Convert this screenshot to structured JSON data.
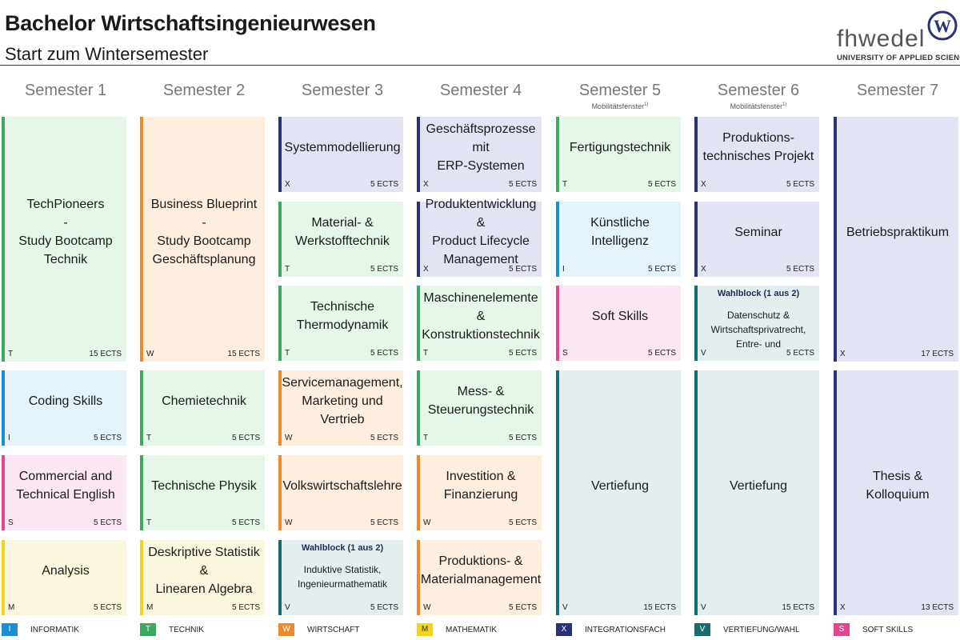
{
  "header": {
    "title": "Bachelor Wirtschaftsingenieurwesen",
    "subtitle": "Start zum Wintersemester"
  },
  "logo": {
    "wordmark": "fhwedel",
    "tagline": "UNIVERSITY OF APPLIED SCIENCES",
    "seal_letter": "W"
  },
  "colors": {
    "I": {
      "bar": "#1a8fd1",
      "bg": "#e5f3fb"
    },
    "T": {
      "bar": "#3da862",
      "bg": "#e6f6e9"
    },
    "W": {
      "bar": "#ee8a2a",
      "bg": "#fdeee0"
    },
    "M": {
      "bar": "#f2d41a",
      "bg": "#fbf7de"
    },
    "X": {
      "bar": "#2a3272",
      "bg": "#e2e3f3"
    },
    "V": {
      "bar": "#1a6b6b",
      "bg": "#e4eeee"
    },
    "S": {
      "bar": "#e0458f",
      "bg": "#fbe6f4"
    }
  },
  "semesters": [
    {
      "label": "Semester 1",
      "note": ""
    },
    {
      "label": "Semester 2",
      "note": ""
    },
    {
      "label": "Semester 3",
      "note": ""
    },
    {
      "label": "Semester 4",
      "note": ""
    },
    {
      "label": "Semester 5",
      "note": "Mobilitätsfenster",
      "note_sup": "1)"
    },
    {
      "label": "Semester 6",
      "note": "Mobilitätsfenster",
      "note_sup": "1)"
    },
    {
      "label": "Semester 7",
      "note": ""
    }
  ],
  "modules": [
    {
      "sem": 0,
      "row": 0,
      "span": 3,
      "name": "TechPioneers\n-\nStudy Bootcamp\nTechnik",
      "type": "T",
      "ects": "15 ECTS"
    },
    {
      "sem": 0,
      "row": 3,
      "span": 1,
      "name": "Coding Skills",
      "type": "I",
      "ects": "5 ECTS"
    },
    {
      "sem": 0,
      "row": 4,
      "span": 1,
      "name": "Commercial and\nTechnical English",
      "type": "S",
      "ects": "5 ECTS"
    },
    {
      "sem": 0,
      "row": 5,
      "span": 1,
      "name": "Analysis",
      "type": "M",
      "ects": "5 ECTS"
    },
    {
      "sem": 1,
      "row": 0,
      "span": 3,
      "name": "Business Blueprint\n-\nStudy Bootcamp\nGeschäftsplanung",
      "type": "W",
      "ects": "15 ECTS"
    },
    {
      "sem": 1,
      "row": 3,
      "span": 1,
      "name": "Chemietechnik",
      "type": "T",
      "ects": "5 ECTS"
    },
    {
      "sem": 1,
      "row": 4,
      "span": 1,
      "name": "Technische Physik",
      "type": "T",
      "ects": "5 ECTS"
    },
    {
      "sem": 1,
      "row": 5,
      "span": 1,
      "name": "Deskriptive Statistik &\nLinearen Algebra",
      "type": "M",
      "ects": "5 ECTS"
    },
    {
      "sem": 2,
      "row": 0,
      "span": 1,
      "name": "Systemmodellierung",
      "type": "X",
      "ects": "5 ECTS"
    },
    {
      "sem": 2,
      "row": 1,
      "span": 1,
      "name": "Material- &\nWerkstofftechnik",
      "type": "T",
      "ects": "5 ECTS"
    },
    {
      "sem": 2,
      "row": 2,
      "span": 1,
      "name": "Technische\nThermodynamik",
      "type": "T",
      "ects": "5 ECTS"
    },
    {
      "sem": 2,
      "row": 3,
      "span": 1,
      "name": "Servicemanagement,\nMarketing und Vertrieb",
      "type": "W",
      "ects": "5 ECTS"
    },
    {
      "sem": 2,
      "row": 4,
      "span": 1,
      "name": "Volkswirtschaftslehre",
      "type": "W",
      "ects": "5 ECTS"
    },
    {
      "sem": 2,
      "row": 5,
      "span": 1,
      "wahlblock": "Wahlblock (1 aus 2)",
      "name": "Induktive Statistik,\nIngenieurmathematik",
      "type": "V",
      "ects": "5 ECTS"
    },
    {
      "sem": 3,
      "row": 0,
      "span": 1,
      "name": "Geschäftsprozesse mit\nERP-Systemen",
      "type": "X",
      "ects": "5 ECTS"
    },
    {
      "sem": 3,
      "row": 1,
      "span": 1,
      "name": "Produktentwicklung &\nProduct Lifecycle\nManagement",
      "type": "X",
      "ects": "5 ECTS"
    },
    {
      "sem": 3,
      "row": 2,
      "span": 1,
      "name": "Maschinenelemente &\nKonstruktionstechnik",
      "type": "T",
      "ects": "5 ECTS"
    },
    {
      "sem": 3,
      "row": 3,
      "span": 1,
      "name": "Mess- &\nSteuerungstechnik",
      "type": "T",
      "ects": "5 ECTS"
    },
    {
      "sem": 3,
      "row": 4,
      "span": 1,
      "name": "Investition &\nFinanzierung",
      "type": "W",
      "ects": "5 ECTS"
    },
    {
      "sem": 3,
      "row": 5,
      "span": 1,
      "name": "Produktions- &\nMaterialmanagement",
      "type": "W",
      "ects": "5 ECTS"
    },
    {
      "sem": 4,
      "row": 0,
      "span": 1,
      "name": "Fertigungstechnik",
      "type": "T",
      "ects": "5 ECTS"
    },
    {
      "sem": 4,
      "row": 1,
      "span": 1,
      "name": "Künstliche Intelligenz",
      "type": "I",
      "ects": "5 ECTS"
    },
    {
      "sem": 4,
      "row": 2,
      "span": 1,
      "name": "Soft Skills",
      "type": "S",
      "ects": "5 ECTS"
    },
    {
      "sem": 4,
      "row": 3,
      "span": 3,
      "name": "Vertiefung",
      "type": "V",
      "ects": "15 ECTS"
    },
    {
      "sem": 5,
      "row": 0,
      "span": 1,
      "name": "Produktions-\ntechnisches Projekt",
      "type": "X",
      "ects": "5 ECTS"
    },
    {
      "sem": 5,
      "row": 1,
      "span": 1,
      "name": "Seminar",
      "type": "X",
      "ects": "5 ECTS"
    },
    {
      "sem": 5,
      "row": 2,
      "span": 1,
      "wahlblock": "Wahlblock (1 aus 2)",
      "name": "Datenschutz &\nWirtschaftsprivatrecht,\nEntre- und Intrapreneurship",
      "type": "V",
      "ects": "5 ECTS"
    },
    {
      "sem": 5,
      "row": 3,
      "span": 3,
      "name": "Vertiefung",
      "type": "V",
      "ects": "15 ECTS"
    },
    {
      "sem": 6,
      "row": 0,
      "span": 3,
      "name": "Betriebspraktikum",
      "type": "X",
      "ects": "17 ECTS"
    },
    {
      "sem": 6,
      "row": 3,
      "span": 3,
      "name": "Thesis & Kolloquium",
      "type": "X",
      "ects": "13 ECTS"
    }
  ],
  "legend": [
    {
      "code": "I",
      "label": "INFORMATIK"
    },
    {
      "code": "T",
      "label": "TECHNIK"
    },
    {
      "code": "W",
      "label": "WIRTSCHAFT"
    },
    {
      "code": "M",
      "label": "MATHEMATIK"
    },
    {
      "code": "X",
      "label": "INTEGRATIONSFACH"
    },
    {
      "code": "V",
      "label": "VERTIEFUNG/WAHL"
    },
    {
      "code": "S",
      "label": "SOFT SKILLS"
    }
  ]
}
